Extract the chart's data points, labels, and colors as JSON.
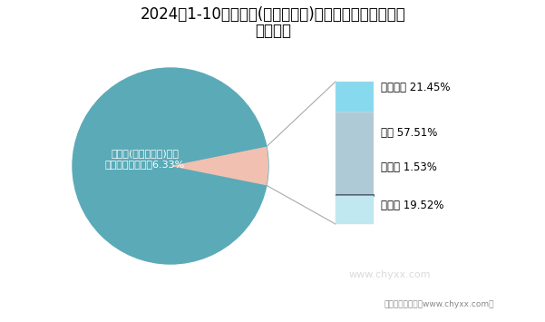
{
  "title_line1": "2024年1-10月山东省(不含青岛市)原保险保费收入类别对",
  "title_line2": "比统计图",
  "pie_pct_shandong": 6.33,
  "pie_pct_national": 93.67,
  "pie_color_shandong": "#F2C0B0",
  "pie_color_national": "#5BAAB8",
  "pie_label_line1": "山东省(不含青岛市)保险",
  "pie_label_line2": "保费占全国比重为6.33%",
  "categories": [
    "财产保险",
    "寿险",
    "意外险",
    "健康险"
  ],
  "percentages": [
    21.45,
    57.51,
    1.53,
    19.52
  ],
  "bar_colors": [
    "#87D9EE",
    "#AECAD6",
    "#5A8A96",
    "#C0E8F0"
  ],
  "label_texts": [
    "财产保险 21.45%",
    "寿险 57.51%",
    "意外险 1.53%",
    "健康险 19.52%"
  ],
  "bg_color": "#FFFFFF",
  "footer_text": "制图：智研咨询（www.chyxx.com）",
  "watermark": "www.chyxx.com"
}
